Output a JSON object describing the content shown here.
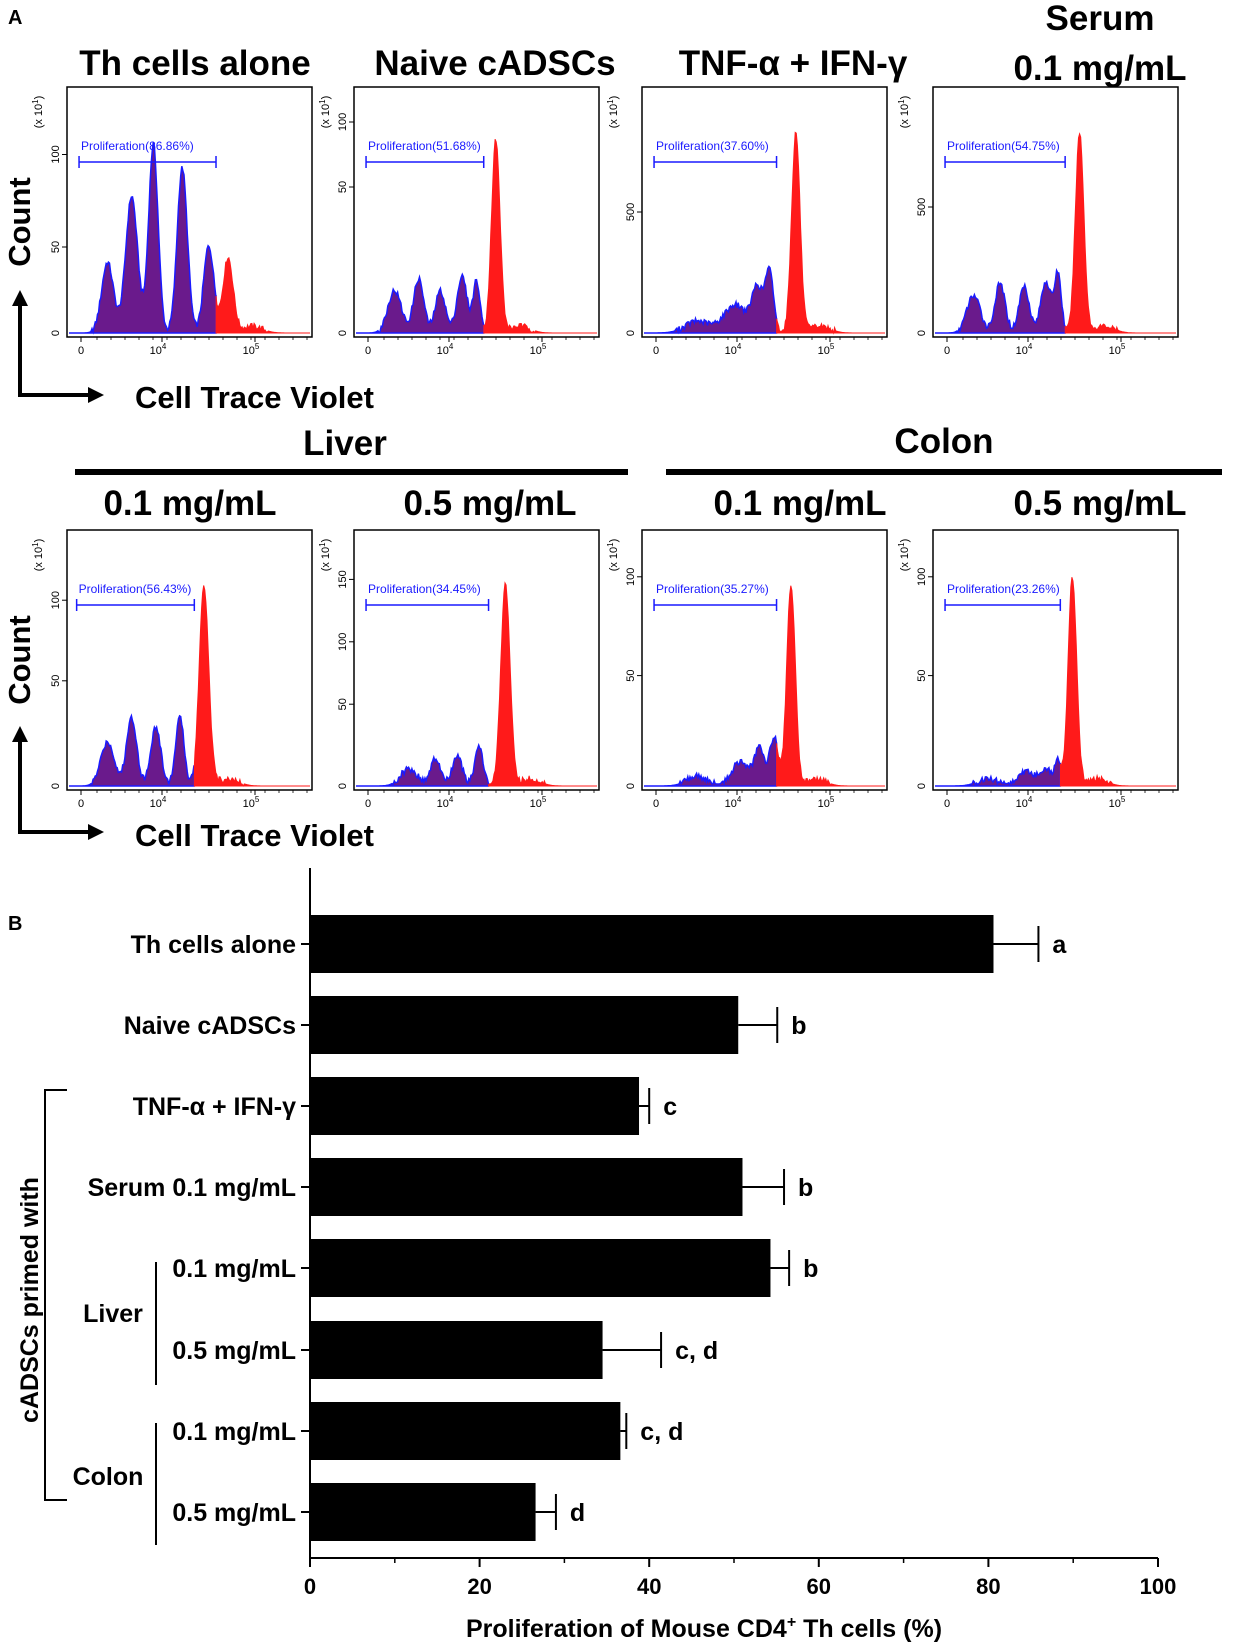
{
  "panels": {
    "a": "A",
    "b": "B"
  },
  "axis": {
    "count": "Count",
    "cell_trace": "Cell Trace Violet"
  },
  "groups": {
    "liver": "Liver",
    "colon": "Colon",
    "primed": "cADSCs primed with"
  },
  "histograms": [
    {
      "title": "Th cells alone",
      "gate": "Proliferation(86.86%)",
      "yticks": [
        "50",
        "100"
      ]
    },
    {
      "title": "Naive cADSCs",
      "gate": "Proliferation(51.68%)",
      "yticks": [
        "50",
        "100"
      ]
    },
    {
      "title": "TNF-α + IFN-γ",
      "gate": "Proliferation(37.60%)",
      "yticks": [
        "500"
      ]
    },
    {
      "title_lines": [
        "Serum",
        "0.1 mg/mL"
      ],
      "gate": "Proliferation(54.75%)",
      "yticks": [
        "500"
      ]
    },
    {
      "title": "0.1 mg/mL",
      "gate": "Proliferation(56.43%)",
      "yticks": [
        "50",
        "100"
      ]
    },
    {
      "title": "0.5 mg/mL",
      "gate": "Proliferation(34.45%)",
      "yticks": [
        "50",
        "100",
        "150"
      ]
    },
    {
      "title": "0.1 mg/mL",
      "gate": "Proliferation(35.27%)",
      "yticks": [
        "50",
        "100"
      ]
    },
    {
      "title": "0.5 mg/mL",
      "gate": "Proliferation(23.26%)",
      "yticks": [
        "50",
        "100"
      ]
    }
  ],
  "hist_common": {
    "yzero": "0",
    "scale": "(x 10",
    "scale_exp": "1",
    "scale_close": ")",
    "x0": "0",
    "x4": "10",
    "x4e": "4",
    "x5": "10",
    "x5e": "5"
  },
  "colors": {
    "purple": "#6a1a8c",
    "red": "#ff1a1a",
    "blue": "#1a1aff",
    "bar": "#000000"
  },
  "chart_data": {
    "type": "bar",
    "orientation": "horizontal",
    "title": "",
    "xlabel": "Proliferation of Mouse CD4",
    "xlabel_sup": "+",
    "xlabel_tail": " Th cells (%)",
    "ylabel": "",
    "xlim": [
      0,
      100
    ],
    "xticks": [
      0,
      20,
      40,
      60,
      80,
      100
    ],
    "categories": [
      "Th cells alone",
      "Naive cADSCs",
      "TNF-α + IFN-γ",
      "Serum 0.1 mg/mL",
      "0.1 mg/mL",
      "0.5 mg/mL",
      "0.1 mg/mL",
      "0.5 mg/mL"
    ],
    "values": [
      80.6,
      50.5,
      38.8,
      51.0,
      54.3,
      34.5,
      36.6,
      26.6
    ],
    "errors": [
      5.3,
      4.6,
      1.2,
      4.9,
      2.2,
      6.9,
      0.7,
      2.4
    ],
    "significance": [
      "a",
      "b",
      "c",
      "b",
      "b",
      "c, d",
      "c, d",
      "d"
    ]
  }
}
